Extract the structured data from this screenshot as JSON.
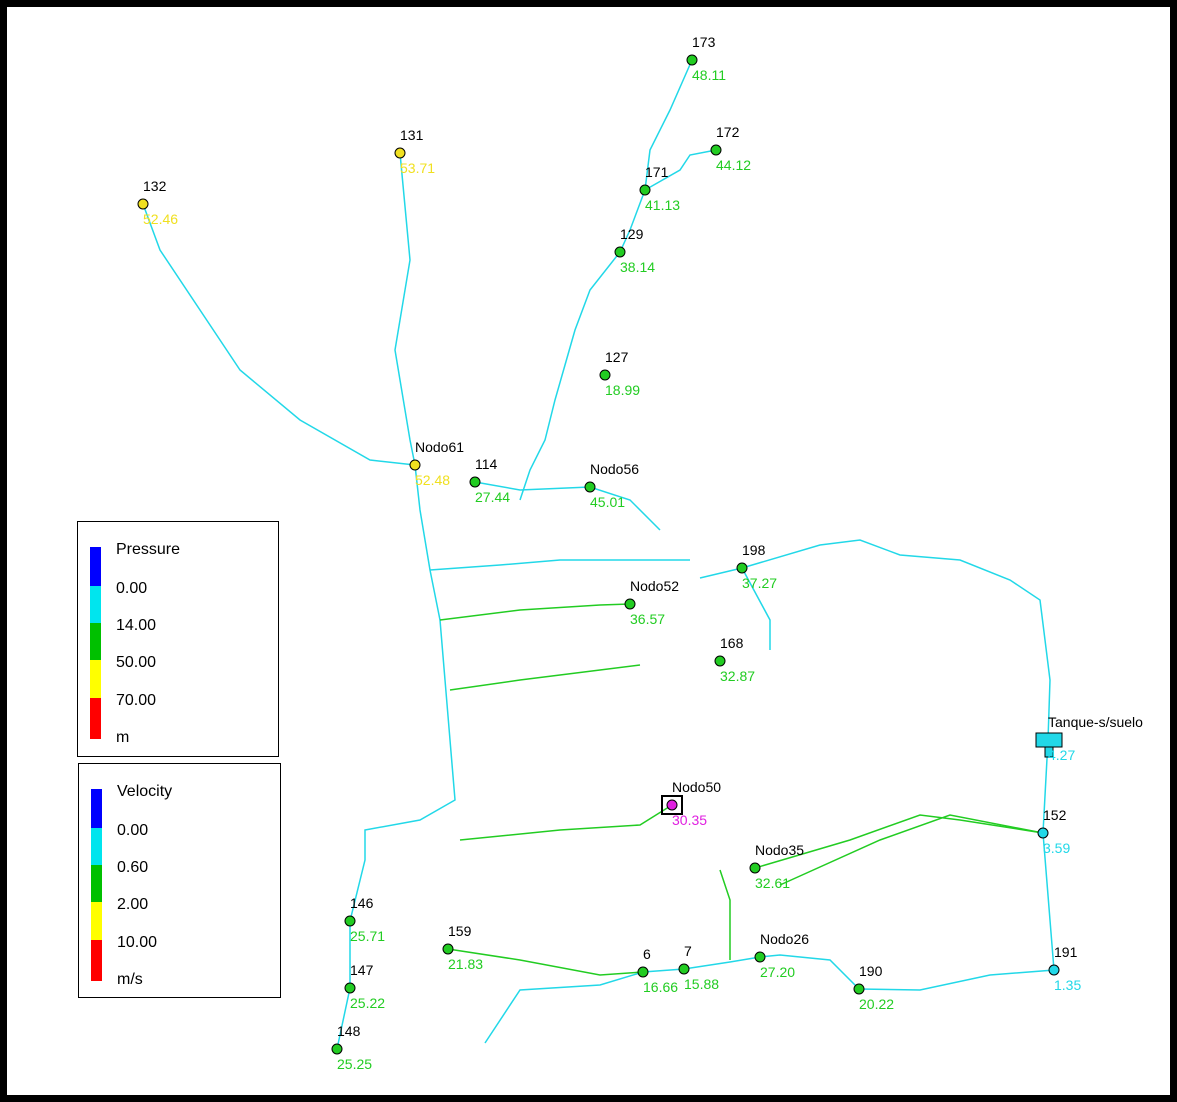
{
  "legends": [
    {
      "title": "Pressure",
      "labels": [
        "0.00",
        "14.00",
        "50.00",
        "70.00"
      ],
      "unit": "m",
      "colors": [
        "#0000ff",
        "#00e5ee",
        "#00c000",
        "#ffff00",
        "#ff0000"
      ]
    },
    {
      "title": "Velocity",
      "labels": [
        "0.00",
        "0.60",
        "2.00",
        "10.00"
      ],
      "unit": "m/s",
      "colors": [
        "#0000ff",
        "#00e5ee",
        "#00c000",
        "#ffff00",
        "#ff0000"
      ]
    }
  ],
  "nodes": [
    {
      "id": "173",
      "value": 48.11,
      "color": "#22cc22"
    },
    {
      "id": "172",
      "value": 44.12,
      "color": "#22cc22"
    },
    {
      "id": "171",
      "value": 41.13,
      "color": "#22cc22"
    },
    {
      "id": "129",
      "value": 38.14,
      "color": "#22cc22"
    },
    {
      "id": "131",
      "value": 53.71,
      "color": "#f0e020"
    },
    {
      "id": "132",
      "value": 52.46,
      "color": "#f0e020"
    },
    {
      "id": "127",
      "value": 18.99,
      "color": "#22cc22"
    },
    {
      "id": "Nodo61",
      "value": 52.48,
      "color": "#f0e020"
    },
    {
      "id": "114",
      "value": 27.44,
      "color": "#22cc22"
    },
    {
      "id": "Nodo56",
      "value": 45.01,
      "color": "#22cc22"
    },
    {
      "id": "Nodo52",
      "value": 36.57,
      "color": "#22cc22"
    },
    {
      "id": "198",
      "value": 37.27,
      "color": "#22cc22"
    },
    {
      "id": "168",
      "value": 32.87,
      "color": "#22cc22"
    },
    {
      "id": "Nodo50",
      "value": 30.35,
      "color": "#e020e0"
    },
    {
      "id": "Nodo35",
      "value": 32.61,
      "color": "#22cc22"
    },
    {
      "id": "Nodo26",
      "value": 27.2,
      "value_label": "27.20",
      "color": "#22cc22"
    },
    {
      "id": "190",
      "value": 20.22,
      "color": "#22cc22"
    },
    {
      "id": "7",
      "value": 15.88,
      "color": "#22cc22"
    },
    {
      "id": "6",
      "value": 16.66,
      "color": "#22cc22"
    },
    {
      "id": "159",
      "value": 21.83,
      "color": "#22cc22"
    },
    {
      "id": "146",
      "value": 25.71,
      "color": "#22cc22"
    },
    {
      "id": "147",
      "value": 25.22,
      "color": "#22cc22"
    },
    {
      "id": "148",
      "value": 25.25,
      "color": "#22cc22"
    },
    {
      "id": "Tanque-s/suelo",
      "value": 4.27,
      "color": "#22d8e8"
    },
    {
      "id": "152",
      "value": 3.59,
      "color": "#22d8e8"
    },
    {
      "id": "191",
      "value": 1.35,
      "color": "#22d8e8"
    }
  ]
}
